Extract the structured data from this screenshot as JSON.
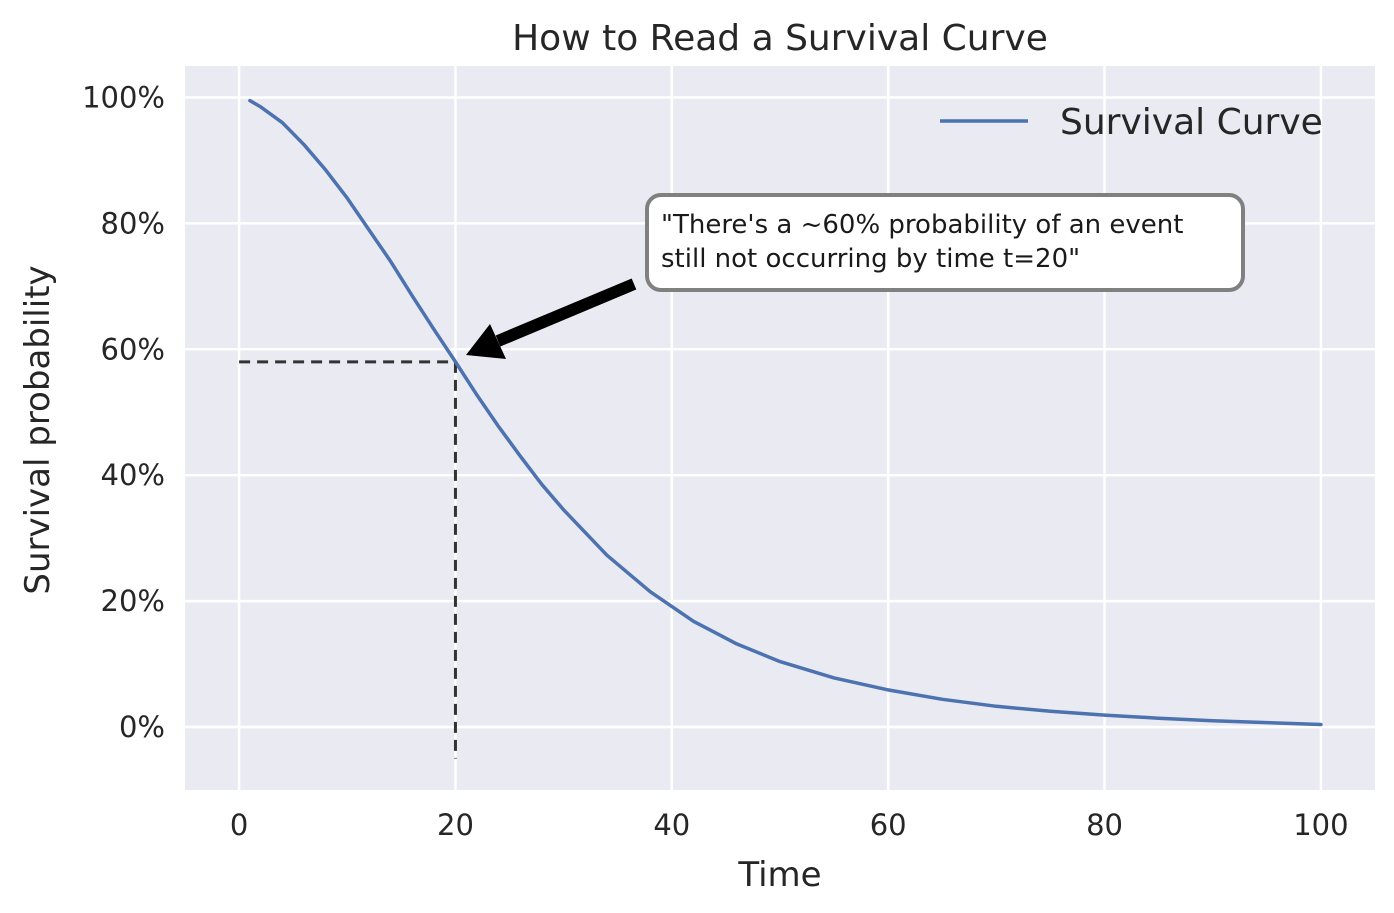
{
  "chart_data": {
    "type": "line",
    "title": "How to Read a Survival Curve",
    "xlabel": "Time",
    "ylabel": "Survival probability",
    "xlim": [
      -5,
      105
    ],
    "ylim": [
      -0.1,
      1.05
    ],
    "xticks": [
      0,
      20,
      40,
      60,
      80,
      100
    ],
    "xtick_labels": [
      "0",
      "20",
      "40",
      "60",
      "80",
      "100"
    ],
    "yticks": [
      0,
      0.2,
      0.4,
      0.6,
      0.8,
      1.0
    ],
    "ytick_labels": [
      "0%",
      "20%",
      "40%",
      "60%",
      "80%",
      "100%"
    ],
    "grid": true,
    "legend_position": "top-right",
    "series": [
      {
        "name": "Survival Curve",
        "color": "#4c72b0",
        "x": [
          1,
          2,
          4,
          6,
          8,
          10,
          12,
          14,
          16,
          18,
          20,
          22,
          24,
          26,
          28,
          30,
          34,
          38,
          42,
          46,
          50,
          55,
          60,
          65,
          70,
          75,
          80,
          85,
          90,
          95,
          100
        ],
        "y": [
          0.995,
          0.985,
          0.96,
          0.925,
          0.885,
          0.84,
          0.79,
          0.74,
          0.685,
          0.632,
          0.58,
          0.527,
          0.477,
          0.43,
          0.385,
          0.345,
          0.273,
          0.215,
          0.168,
          0.132,
          0.104,
          0.078,
          0.059,
          0.044,
          0.033,
          0.025,
          0.019,
          0.014,
          0.01,
          0.007,
          0.004
        ]
      }
    ],
    "reference_point": {
      "x": 20,
      "y": 0.58
    },
    "annotation": {
      "lines": [
        "\"There's a ~60% probability of an event",
        "still not occurring by time t=20\""
      ]
    }
  }
}
